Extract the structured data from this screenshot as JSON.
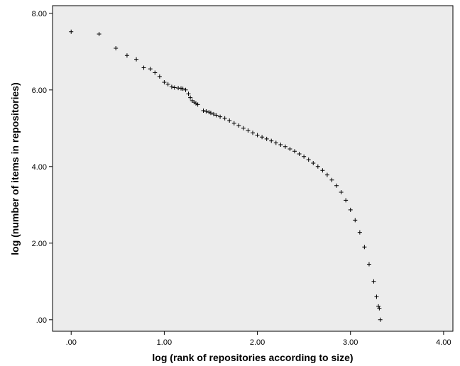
{
  "chart_data": {
    "type": "scatter",
    "title": "",
    "xlabel": "log (rank of repositories according to size)",
    "ylabel": "log (number of items in repositories)",
    "xlim": [
      -0.2,
      4.1
    ],
    "ylim": [
      -0.3,
      8.2
    ],
    "x_ticks": [
      0,
      1,
      2,
      3,
      4
    ],
    "x_tick_labels": [
      ".00",
      "1.00",
      "2.00",
      "3.00",
      "4.00"
    ],
    "y_ticks": [
      0,
      2,
      4,
      6,
      8
    ],
    "y_tick_labels": [
      ".00",
      "2.00",
      "4.00",
      "6.00",
      "8.00"
    ],
    "grid": false,
    "legend": "none",
    "marker": "plus",
    "colors": {
      "plot_background": "#ececec",
      "marker": "#000000",
      "frame": "#000000"
    },
    "points": [
      [
        0.0,
        7.52
      ],
      [
        0.3,
        7.46
      ],
      [
        0.48,
        7.09
      ],
      [
        0.6,
        6.9
      ],
      [
        0.7,
        6.8
      ],
      [
        0.78,
        6.58
      ],
      [
        0.85,
        6.55
      ],
      [
        0.9,
        6.45
      ],
      [
        0.95,
        6.35
      ],
      [
        1.0,
        6.2
      ],
      [
        1.04,
        6.15
      ],
      [
        1.08,
        6.08
      ],
      [
        1.11,
        6.06
      ],
      [
        1.15,
        6.05
      ],
      [
        1.18,
        6.04
      ],
      [
        1.2,
        6.03
      ],
      [
        1.23,
        6.0
      ],
      [
        1.26,
        5.9
      ],
      [
        1.28,
        5.8
      ],
      [
        1.3,
        5.72
      ],
      [
        1.32,
        5.68
      ],
      [
        1.34,
        5.65
      ],
      [
        1.36,
        5.62
      ],
      [
        1.42,
        5.46
      ],
      [
        1.45,
        5.44
      ],
      [
        1.48,
        5.42
      ],
      [
        1.5,
        5.4
      ],
      [
        1.53,
        5.37
      ],
      [
        1.56,
        5.34
      ],
      [
        1.6,
        5.3
      ],
      [
        1.65,
        5.26
      ],
      [
        1.7,
        5.2
      ],
      [
        1.75,
        5.13
      ],
      [
        1.8,
        5.07
      ],
      [
        1.85,
        5.0
      ],
      [
        1.9,
        4.94
      ],
      [
        1.95,
        4.88
      ],
      [
        2.0,
        4.82
      ],
      [
        2.05,
        4.77
      ],
      [
        2.1,
        4.72
      ],
      [
        2.15,
        4.67
      ],
      [
        2.2,
        4.62
      ],
      [
        2.25,
        4.57
      ],
      [
        2.3,
        4.52
      ],
      [
        2.35,
        4.46
      ],
      [
        2.4,
        4.4
      ],
      [
        2.45,
        4.33
      ],
      [
        2.5,
        4.26
      ],
      [
        2.55,
        4.18
      ],
      [
        2.6,
        4.09
      ],
      [
        2.65,
        4.0
      ],
      [
        2.7,
        3.9
      ],
      [
        2.75,
        3.78
      ],
      [
        2.8,
        3.65
      ],
      [
        2.85,
        3.5
      ],
      [
        2.9,
        3.33
      ],
      [
        2.95,
        3.12
      ],
      [
        3.0,
        2.87
      ],
      [
        3.05,
        2.6
      ],
      [
        3.1,
        2.28
      ],
      [
        3.15,
        1.9
      ],
      [
        3.2,
        1.45
      ],
      [
        3.25,
        1.0
      ],
      [
        3.28,
        0.6
      ],
      [
        3.3,
        0.35
      ],
      [
        3.31,
        0.3
      ],
      [
        3.32,
        0.0
      ]
    ]
  }
}
